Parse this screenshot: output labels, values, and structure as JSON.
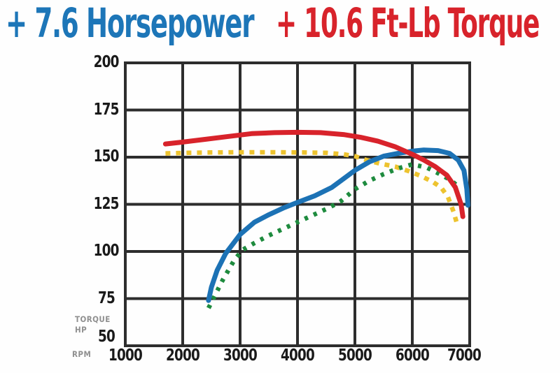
{
  "title": {
    "hp_gain": "+ 7.6 Horsepower",
    "tq_gain": "+ 10.6 Ft-Lb Torque"
  },
  "colors": {
    "blue": "#1c72b5",
    "red": "#d8232b",
    "yellow": "#edc32f",
    "green": "#1e8b3e",
    "title_blue": "#1d76b8",
    "title_red": "#d8232b",
    "grid": "#2d2d2d",
    "tick_text": "#1a1a1a",
    "side_text": "#8f8f8f"
  },
  "axis": {
    "x_label": "RPM",
    "y_label_top": "TORQUE",
    "y_label_bottom": "HP"
  },
  "chart_data": {
    "type": "line",
    "title": "+ 7.6 Horsepower  + 10.6 Ft-Lb Torque",
    "grid": true,
    "legend": "none",
    "x_axis": {
      "label": "RPM",
      "ticks": [
        1000,
        2000,
        3000,
        4000,
        5000,
        6000,
        7000
      ],
      "range": [
        1000,
        7000
      ]
    },
    "y_axis": {
      "labels": [
        "TORQUE",
        "HP"
      ],
      "ticks": [
        200,
        175,
        150,
        125,
        100,
        75,
        50
      ],
      "range": [
        50,
        200
      ]
    },
    "series": [
      {
        "id": "yellow-dotted",
        "description": "dotted yellow curve (torque, lower flat curve ~152 peak)",
        "color": "yellow",
        "style": "dotted",
        "peak": 152.6,
        "points": [
          [
            1700,
            152
          ],
          [
            2100,
            152.3
          ],
          [
            2500,
            152.5
          ],
          [
            2900,
            152.6
          ],
          [
            3300,
            152.6
          ],
          [
            3700,
            152.6
          ],
          [
            4100,
            152.5
          ],
          [
            4500,
            152.3
          ],
          [
            4800,
            151.5
          ],
          [
            5000,
            150.5
          ],
          [
            5200,
            148.5
          ],
          [
            5450,
            146.5
          ],
          [
            5700,
            145
          ],
          [
            5950,
            142.5
          ],
          [
            6150,
            140
          ],
          [
            6350,
            137
          ],
          [
            6500,
            134
          ],
          [
            6620,
            129
          ],
          [
            6720,
            121
          ],
          [
            6790,
            113.5
          ]
        ]
      },
      {
        "id": "green-dotted",
        "description": "dotted green curve (horsepower, lower curve ~146 peak)",
        "color": "green",
        "style": "dotted",
        "peak": 146.2,
        "points": [
          [
            2450,
            70
          ],
          [
            2550,
            76
          ],
          [
            2700,
            85
          ],
          [
            2900,
            95.5
          ],
          [
            3050,
            101
          ],
          [
            3250,
            104.5
          ],
          [
            3500,
            108.5
          ],
          [
            3750,
            112
          ],
          [
            4000,
            115.5
          ],
          [
            4250,
            119
          ],
          [
            4500,
            122.5
          ],
          [
            4750,
            126.5
          ],
          [
            5000,
            133
          ],
          [
            5250,
            137.5
          ],
          [
            5500,
            141
          ],
          [
            5750,
            144
          ],
          [
            6000,
            146.2
          ],
          [
            6250,
            144.5
          ],
          [
            6450,
            141.5
          ],
          [
            6600,
            139
          ],
          [
            6700,
            137
          ],
          [
            6800,
            134.5
          ]
        ]
      },
      {
        "id": "blue-solid",
        "description": "solid blue curve (horsepower, upper curve ~153.8 peak)",
        "color": "blue",
        "style": "solid",
        "peak": 153.8,
        "points": [
          [
            2450,
            74
          ],
          [
            2500,
            81
          ],
          [
            2600,
            90
          ],
          [
            2750,
            99
          ],
          [
            3000,
            109
          ],
          [
            3250,
            115.5
          ],
          [
            3500,
            119.5
          ],
          [
            3750,
            123
          ],
          [
            4000,
            126
          ],
          [
            4300,
            129.5
          ],
          [
            4600,
            134
          ],
          [
            4800,
            138.5
          ],
          [
            5000,
            143
          ],
          [
            5250,
            147.5
          ],
          [
            5500,
            150.5
          ],
          [
            5750,
            152
          ],
          [
            6000,
            153.2
          ],
          [
            6200,
            153.8
          ],
          [
            6450,
            153.5
          ],
          [
            6650,
            152
          ],
          [
            6800,
            148.5
          ],
          [
            6900,
            143
          ],
          [
            6950,
            133
          ],
          [
            6970,
            124.5
          ]
        ]
      },
      {
        "id": "red-solid",
        "description": "solid red curve (torque, upper curve ~163.2 peak)",
        "color": "red",
        "style": "solid",
        "peak": 163.2,
        "points": [
          [
            1700,
            157
          ],
          [
            2000,
            158
          ],
          [
            2400,
            159.5
          ],
          [
            2800,
            161
          ],
          [
            3200,
            162.5
          ],
          [
            3600,
            163
          ],
          [
            4000,
            163.2
          ],
          [
            4400,
            163
          ],
          [
            4800,
            162
          ],
          [
            5100,
            160.5
          ],
          [
            5400,
            158.5
          ],
          [
            5700,
            155.5
          ],
          [
            6000,
            151.5
          ],
          [
            6200,
            148.5
          ],
          [
            6400,
            145
          ],
          [
            6600,
            140.5
          ],
          [
            6750,
            134
          ],
          [
            6850,
            125
          ],
          [
            6880,
            118.5
          ]
        ]
      }
    ]
  }
}
